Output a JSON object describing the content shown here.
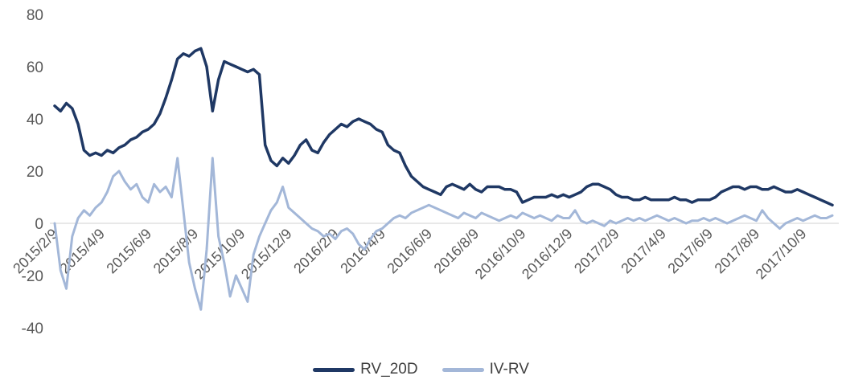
{
  "chart_data": {
    "type": "line",
    "title": "",
    "ylim": [
      -40,
      80
    ],
    "yticks": [
      80,
      60,
      40,
      20,
      0,
      -20,
      -40
    ],
    "x_tick_labels": [
      "2015/2/9",
      "2015/4/9",
      "2015/6/9",
      "2015/8/9",
      "2015/10/9",
      "2015/12/9",
      "2016/2/9",
      "2016/4/9",
      "2016/6/9",
      "2016/8/9",
      "2016/10/9",
      "2016/12/9",
      "2017/2/9",
      "2017/4/9",
      "2017/6/9",
      "2017/8/9",
      "2017/10/9"
    ],
    "x_tick_indices": [
      0,
      8,
      16,
      24,
      32,
      40,
      48,
      56,
      64,
      72,
      80,
      88,
      96,
      104,
      112,
      120,
      128
    ],
    "gridline_color": "#D9D9D9",
    "label_color": "#595959",
    "legend_position": "bottom",
    "series": [
      {
        "name": "RV_20D",
        "color": "#1F3864",
        "width": 3.5,
        "values": [
          45,
          43,
          46,
          44,
          38,
          28,
          26,
          27,
          26,
          28,
          27,
          29,
          30,
          32,
          33,
          35,
          36,
          38,
          42,
          48,
          55,
          63,
          65,
          64,
          66,
          67,
          60,
          43,
          55,
          62,
          61,
          60,
          59,
          58,
          59,
          57,
          30,
          24,
          22,
          25,
          23,
          26,
          30,
          32,
          28,
          27,
          31,
          34,
          36,
          38,
          37,
          39,
          40,
          39,
          38,
          36,
          35,
          30,
          28,
          27,
          22,
          18,
          16,
          14,
          13,
          12,
          11,
          14,
          15,
          14,
          13,
          15,
          13,
          12,
          14,
          14,
          14,
          13,
          13,
          12,
          8,
          9,
          10,
          10,
          10,
          11,
          10,
          11,
          10,
          11,
          12,
          14,
          15,
          15,
          14,
          13,
          11,
          10,
          10,
          9,
          9,
          10,
          9,
          9,
          9,
          9,
          10,
          9,
          9,
          8,
          9,
          9,
          9,
          10,
          12,
          13,
          14,
          14,
          13,
          14,
          14,
          13,
          13,
          14,
          13,
          12,
          12,
          13,
          12,
          11,
          10,
          9,
          8,
          7
        ]
      },
      {
        "name": "IV-RV",
        "color": "#A3B7D8",
        "width": 3,
        "values": [
          0,
          -18,
          -25,
          -5,
          2,
          5,
          3,
          6,
          8,
          12,
          18,
          20,
          16,
          13,
          15,
          10,
          8,
          15,
          12,
          14,
          10,
          25,
          5,
          -15,
          -25,
          -33,
          -10,
          25,
          -5,
          -15,
          -28,
          -20,
          -25,
          -30,
          -12,
          -5,
          0,
          5,
          8,
          14,
          6,
          4,
          2,
          0,
          -2,
          -3,
          -5,
          -4,
          -6,
          -3,
          -2,
          -4,
          -8,
          -10,
          -6,
          -3,
          -2,
          0,
          2,
          3,
          2,
          4,
          5,
          6,
          7,
          6,
          5,
          4,
          3,
          2,
          4,
          3,
          2,
          4,
          3,
          2,
          1,
          2,
          3,
          2,
          4,
          3,
          2,
          3,
          2,
          1,
          3,
          2,
          2,
          5,
          1,
          0,
          1,
          0,
          -1,
          1,
          0,
          1,
          2,
          1,
          2,
          1,
          2,
          3,
          2,
          1,
          2,
          1,
          0,
          1,
          1,
          2,
          1,
          2,
          1,
          0,
          1,
          2,
          3,
          2,
          1,
          5,
          2,
          0,
          -2,
          0,
          1,
          2,
          1,
          2,
          3,
          2,
          2,
          3
        ]
      }
    ]
  }
}
